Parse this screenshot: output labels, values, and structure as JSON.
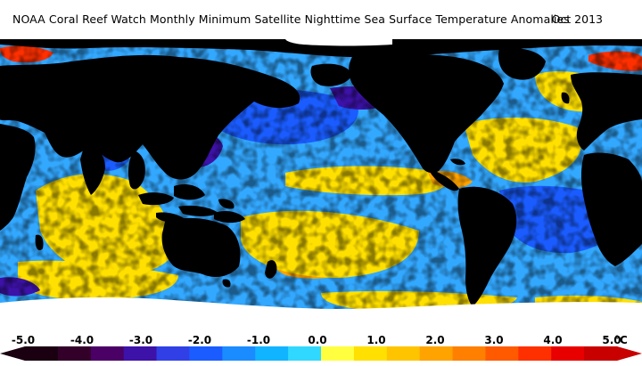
{
  "header": {
    "title": "NOAA Coral Reef Watch Monthly Minimum Satellite Nighttime Sea Surface Temperature Anomalies",
    "date": "Oct 2013"
  },
  "colorbar": {
    "unit": "°C",
    "min": -5.0,
    "max": 5.0,
    "tick_labels": [
      "-5.0",
      "-4.0",
      "-3.0",
      "-2.0",
      "-1.0",
      "0.0",
      "1.0",
      "2.0",
      "3.0",
      "4.0",
      "5.0"
    ],
    "swatch_colors": [
      "#1a0010",
      "#33002a",
      "#4a0065",
      "#3d12a8",
      "#3040e6",
      "#1a5cff",
      "#1a8cff",
      "#10b4ff",
      "#30d8ff",
      "#ffff40",
      "#ffe000",
      "#ffc400",
      "#ffa300",
      "#ff8000",
      "#ff5a00",
      "#ff3000",
      "#e80000",
      "#c80000"
    ]
  },
  "map_colors": {
    "land": "#000000",
    "ice": "#ffffff",
    "ocean_base": "#33a8ff",
    "cool": "#1a5cff",
    "deep_cool": "#3d12a8",
    "warm": "#ffe000",
    "hot": "#ffa300",
    "very_hot": "#ff3000"
  }
}
